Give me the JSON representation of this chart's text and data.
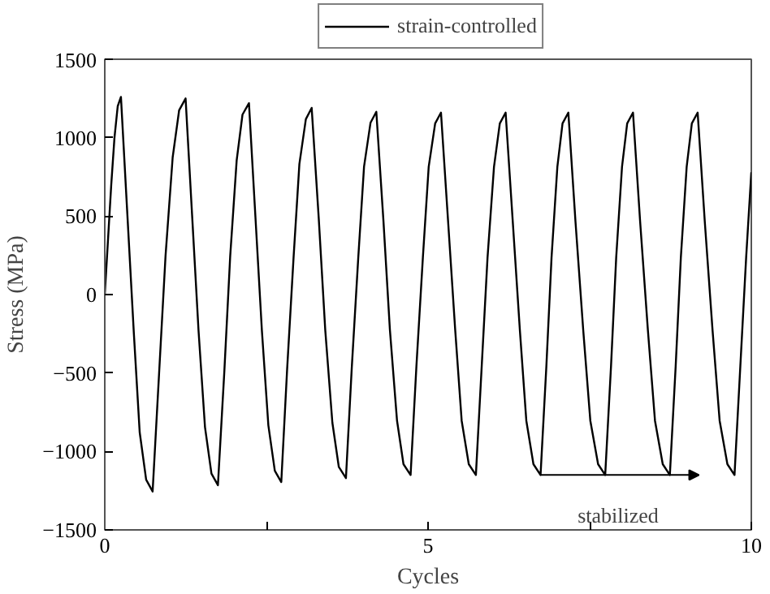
{
  "chart_data": {
    "type": "line",
    "xlabel": "Cycles",
    "ylabel": "Stress (MPa)",
    "xlim": [
      0,
      10
    ],
    "ylim": [
      -1500,
      1500
    ],
    "xticks": [
      0,
      {
        "value": 2.5,
        "label": null
      },
      5,
      {
        "value": 7.5,
        "label": null
      },
      10
    ],
    "yticks": [
      -1500,
      -1000,
      -500,
      0,
      500,
      1000,
      1500
    ],
    "grid": false,
    "legend": "top",
    "marker": "none",
    "line_style": "solid",
    "annotations": [
      {
        "text": "stabilized",
        "x": 6.74,
        "y": -1150
      }
    ],
    "series": [
      {
        "name": "strain-controlled",
        "color": "#000000",
        "x": [
          0,
          0.05,
          0.1,
          0.15,
          0.2,
          0.25,
          0.35,
          0.45,
          0.54,
          0.64,
          0.74,
          0.84,
          0.94,
          1.05,
          1.15,
          1.25,
          1.35,
          1.45,
          1.55,
          1.65,
          1.75,
          1.85,
          1.94,
          2.04,
          2.13,
          2.23,
          2.33,
          2.43,
          2.53,
          2.63,
          2.73,
          2.82,
          2.92,
          3.01,
          3.11,
          3.2,
          3.31,
          3.41,
          3.52,
          3.62,
          3.73,
          3.82,
          3.92,
          4.01,
          4.11,
          4.2,
          4.31,
          4.41,
          4.52,
          4.62,
          4.73,
          4.82,
          4.92,
          5.01,
          5.11,
          5.2,
          5.31,
          5.42,
          5.52,
          5.63,
          5.74,
          5.83,
          5.92,
          6.02,
          6.11,
          6.2,
          6.31,
          6.42,
          6.52,
          6.63,
          6.74,
          6.83,
          6.91,
          7.0,
          7.08,
          7.17,
          7.28,
          7.4,
          7.51,
          7.63,
          7.74,
          7.83,
          7.91,
          8.0,
          8.08,
          8.17,
          8.28,
          8.4,
          8.51,
          8.63,
          8.74,
          8.83,
          8.91,
          9.0,
          9.08,
          9.17,
          9.28,
          9.4,
          9.51,
          9.63,
          9.74,
          9.83,
          9.92,
          10.0
        ],
        "values": [
          0,
          350,
          700,
          1000,
          1200,
          1260,
          505,
          -249,
          -878,
          -1180,
          -1255,
          -503,
          248,
          874,
          1175,
          1250,
          510,
          -229,
          -845,
          -1141,
          -1215,
          -484,
          246,
          855,
          1147,
          1220,
          495,
          -229,
          -833,
          -1123,
          -1195,
          -479,
          236,
          832,
          1118,
          1190,
          482,
          -226,
          -816,
          -1099,
          -1170,
          -469,
          231,
          815,
          1095,
          1165,
          470,
          -224,
          -803,
          -1081,
          -1150,
          -457,
          236,
          814,
          1091,
          1160,
          467,
          -226,
          -804,
          -1081,
          -1150,
          -457,
          236,
          814,
          1091,
          1160,
          467,
          -226,
          -804,
          -1081,
          -1150,
          -457,
          236,
          814,
          1091,
          1160,
          467,
          -226,
          -804,
          -1081,
          -1150,
          -457,
          236,
          814,
          1091,
          1160,
          467,
          -226,
          -804,
          -1081,
          -1150,
          -457,
          236,
          814,
          1091,
          1160,
          467,
          -226,
          -804,
          -1081,
          -1150,
          -457,
          236,
          780
        ]
      }
    ]
  }
}
